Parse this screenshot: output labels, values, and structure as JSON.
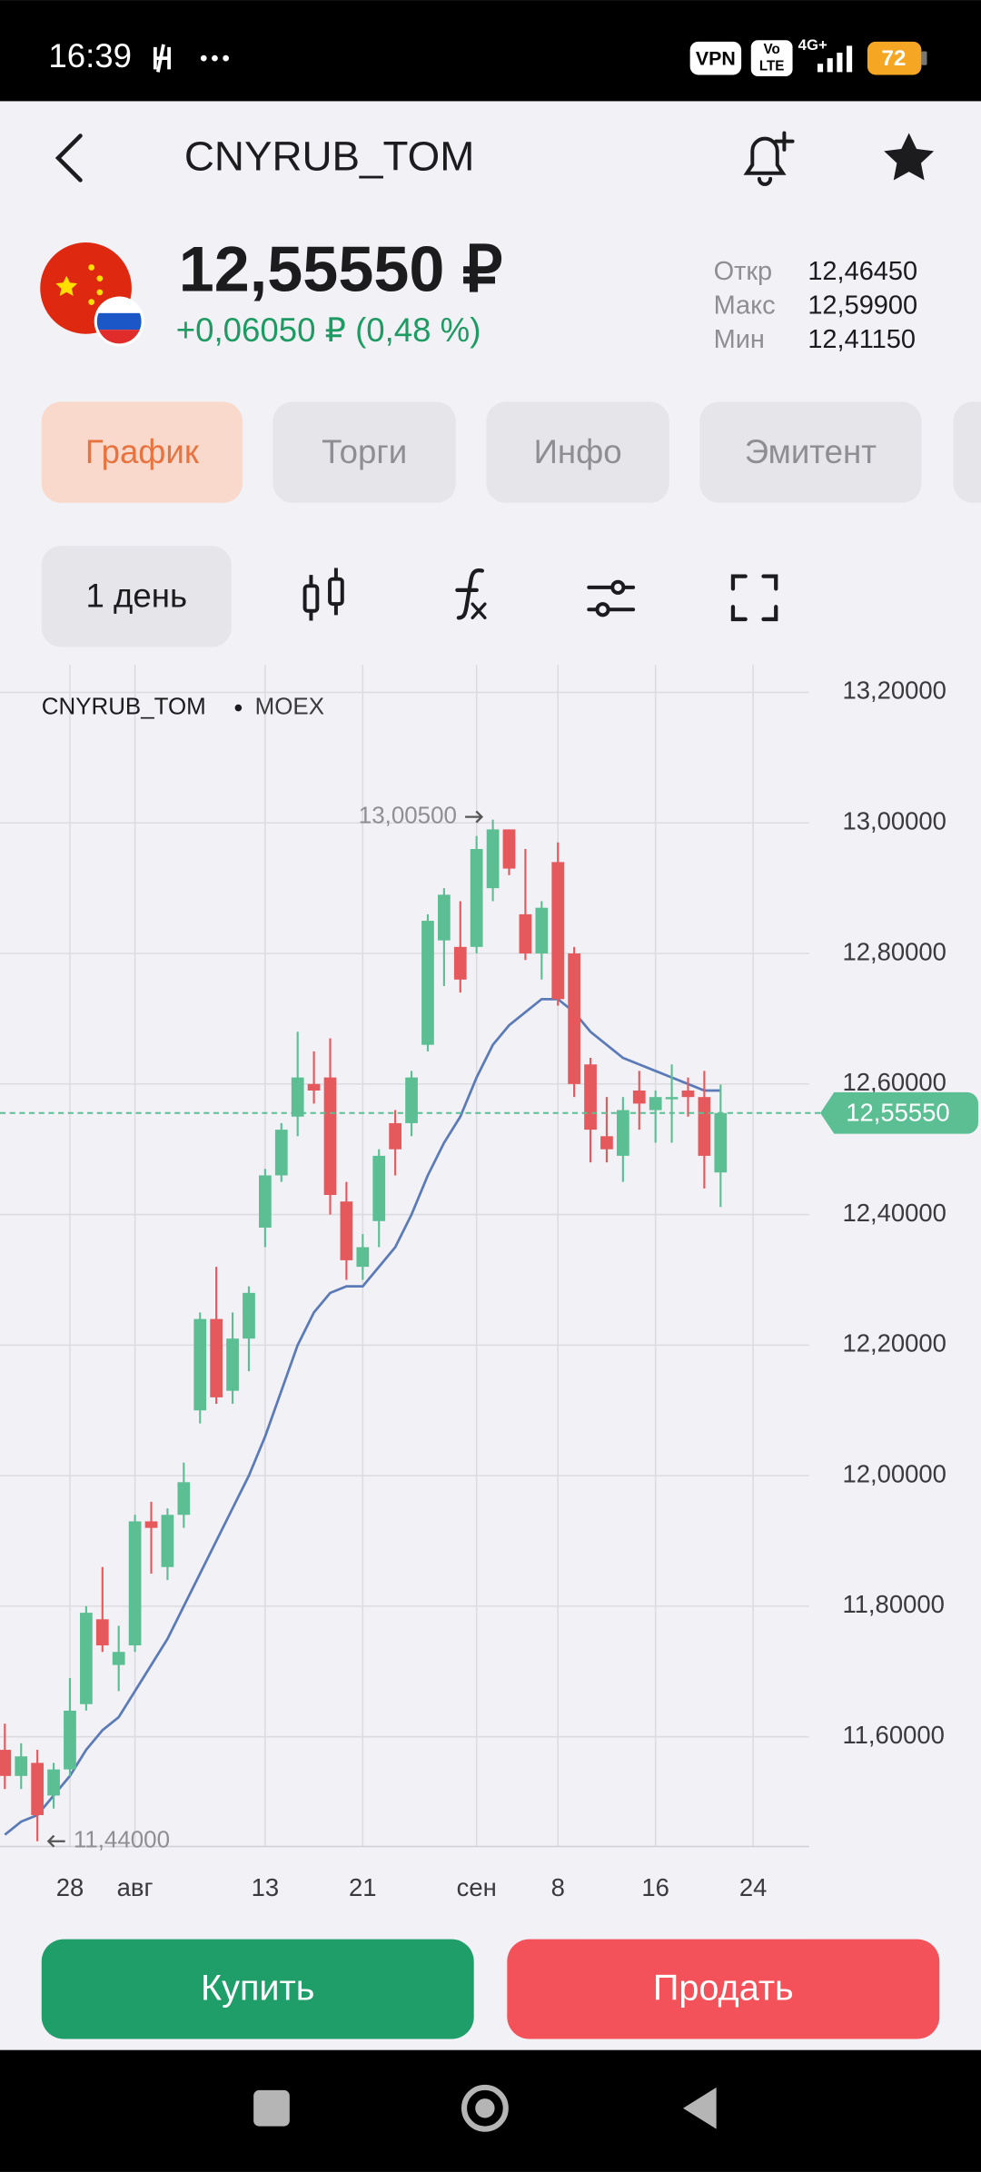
{
  "status_bar": {
    "time": "16:39",
    "vpn": "VPN",
    "volte": [
      "Vo",
      "LTE"
    ],
    "network": "4G+",
    "battery": "72"
  },
  "header": {
    "title": "CNYRUB_TOM",
    "price": "12,55550 ₽",
    "change": "+0,06050 ₽ (0,48 %)",
    "stats": [
      {
        "label": "Откр",
        "value": "12,46450"
      },
      {
        "label": "Макс",
        "value": "12,59900"
      },
      {
        "label": "Мин",
        "value": "12,41150"
      }
    ]
  },
  "tabs": [
    "График",
    "Торги",
    "Инфо",
    "Эмитент"
  ],
  "period": "1 день",
  "chart": {
    "type": "candlestick",
    "title": "CNYRUB_TOM",
    "source": "MOEX",
    "categories": [
      null,
      null,
      null,
      null,
      "28",
      null,
      null,
      null,
      "авг",
      null,
      null,
      null,
      null,
      null,
      null,
      null,
      "13",
      null,
      null,
      null,
      null,
      null,
      "21",
      null,
      null,
      null,
      null,
      null,
      null,
      "сен",
      null,
      null,
      null,
      null,
      "8",
      null,
      null,
      null,
      null,
      null,
      "16",
      null,
      null,
      null,
      null,
      null,
      "24"
    ],
    "open": [
      11.58,
      11.54,
      11.56,
      11.51,
      11.55,
      11.65,
      11.78,
      11.71,
      11.74,
      11.93,
      11.86,
      11.94,
      12.1,
      12.24,
      12.13,
      12.21,
      12.38,
      12.46,
      12.55,
      12.6,
      12.61,
      12.42,
      12.32,
      12.39,
      12.54,
      12.54,
      12.66,
      12.82,
      12.81,
      12.81,
      12.9,
      12.99,
      12.86,
      12.8,
      12.94,
      12.8,
      12.63,
      12.52,
      12.49,
      12.59,
      12.56,
      12.58,
      12.59,
      12.58,
      12.4645,
      null,
      null
    ],
    "high": [
      11.62,
      11.59,
      11.58,
      11.56,
      11.69,
      11.8,
      11.86,
      11.77,
      11.94,
      11.96,
      11.95,
      12.02,
      12.25,
      12.32,
      12.25,
      12.29,
      12.47,
      12.54,
      12.68,
      12.65,
      12.67,
      12.45,
      12.37,
      12.5,
      12.56,
      12.62,
      12.86,
      12.9,
      12.88,
      12.98,
      13.005,
      12.99,
      12.96,
      12.88,
      12.97,
      12.81,
      12.64,
      12.58,
      12.58,
      12.62,
      12.59,
      12.63,
      12.61,
      12.62,
      12.599,
      null,
      null
    ],
    "low": [
      11.52,
      11.52,
      11.44,
      11.49,
      11.54,
      11.64,
      11.73,
      11.67,
      11.73,
      11.85,
      11.84,
      11.92,
      12.08,
      12.11,
      12.11,
      12.16,
      12.35,
      12.45,
      12.52,
      12.57,
      12.4,
      12.3,
      12.3,
      12.35,
      12.46,
      12.52,
      12.65,
      12.75,
      12.74,
      12.8,
      12.88,
      12.92,
      12.79,
      12.76,
      12.72,
      12.58,
      12.48,
      12.48,
      12.45,
      12.53,
      12.51,
      12.51,
      12.55,
      12.44,
      12.4115,
      null,
      null
    ],
    "close": [
      11.54,
      11.57,
      11.48,
      11.55,
      11.64,
      11.79,
      11.74,
      11.73,
      11.93,
      11.92,
      11.94,
      11.99,
      12.24,
      12.12,
      12.21,
      12.28,
      12.46,
      12.53,
      12.61,
      12.59,
      12.43,
      12.33,
      12.35,
      12.49,
      12.5,
      12.61,
      12.85,
      12.89,
      12.76,
      12.96,
      12.99,
      12.93,
      12.8,
      12.87,
      12.73,
      12.6,
      12.53,
      12.5,
      12.56,
      12.57,
      12.58,
      12.58,
      12.58,
      12.49,
      12.5555,
      null,
      null
    ],
    "up_color": "#5cbf94",
    "down_color": "#e5585c",
    "ma": {
      "color": "#5b7bb8",
      "values": [
        11.45,
        11.47,
        11.48,
        11.51,
        11.54,
        11.58,
        11.61,
        11.63,
        11.67,
        11.71,
        11.75,
        11.8,
        11.85,
        11.9,
        11.95,
        12.0,
        12.06,
        12.13,
        12.2,
        12.25,
        12.28,
        12.29,
        12.29,
        12.32,
        12.35,
        12.4,
        12.46,
        12.51,
        12.55,
        12.61,
        12.66,
        12.69,
        12.71,
        12.73,
        12.73,
        12.71,
        12.68,
        12.66,
        12.64,
        12.63,
        12.62,
        12.61,
        12.6,
        12.59,
        12.59,
        null,
        null
      ]
    },
    "ylim": [
      11.432,
      13.242
    ],
    "yticks": [
      {
        "value": 11.6,
        "label": "11,60000"
      },
      {
        "value": 11.8,
        "label": "11,80000"
      },
      {
        "value": 12.0,
        "label": "12,00000"
      },
      {
        "value": 12.2,
        "label": "12,20000"
      },
      {
        "value": 12.4,
        "label": "12,40000"
      },
      {
        "value": 12.6,
        "label": "12,60000"
      },
      {
        "value": 12.8,
        "label": "12,80000"
      },
      {
        "value": 13.0,
        "label": "13,00000"
      },
      {
        "value": 13.2,
        "label": "13,20000"
      }
    ],
    "grid": true,
    "last_price": {
      "value": 12.5555,
      "label": "12,55550",
      "color": "#5cbf94"
    },
    "annotations": [
      {
        "value": 13.005,
        "label": "13,00500"
      },
      {
        "value": 11.44,
        "label": "11,44000"
      }
    ]
  },
  "buttons": {
    "buy": "Купить",
    "sell": "Продать"
  }
}
